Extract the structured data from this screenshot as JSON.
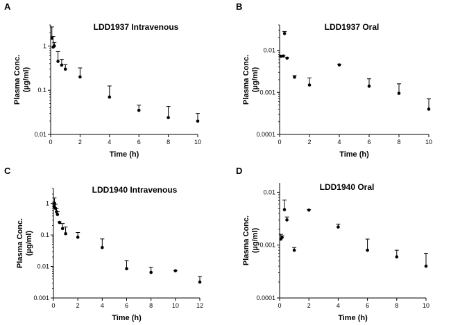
{
  "chart_data": [
    {
      "panel": "A",
      "type": "scatter",
      "title": "LDD1937 Intravenous",
      "xlabel": "Time (h)",
      "ylabel": [
        "Plasma Conc.",
        "(µg/ml)"
      ],
      "yscale": "log",
      "xlim": [
        0,
        10
      ],
      "ylim": [
        0.01,
        3
      ],
      "xticks": [
        0,
        2,
        4,
        6,
        8,
        10
      ],
      "xtick_labels": [
        "0",
        "2",
        "4",
        "6",
        "8",
        "10"
      ],
      "yticks": [
        0.01,
        0.1,
        1
      ],
      "ytick_labels": [
        "0.01",
        "0.1",
        "1"
      ],
      "points": [
        {
          "x": 0.083,
          "y": 1.5,
          "err": 2.7
        },
        {
          "x": 0.17,
          "y": 0.95,
          "err": 1.65
        },
        {
          "x": 0.25,
          "y": 1.0,
          "err": 1.2
        },
        {
          "x": 0.5,
          "y": 0.45,
          "err": 0.75
        },
        {
          "x": 0.75,
          "y": 0.37,
          "err": 0.5
        },
        {
          "x": 1,
          "y": 0.3,
          "err": 0.38
        },
        {
          "x": 2,
          "y": 0.2,
          "err": 0.32
        },
        {
          "x": 4,
          "y": 0.07,
          "err": 0.125
        },
        {
          "x": 6,
          "y": 0.035,
          "err": 0.046
        },
        {
          "x": 8,
          "y": 0.024,
          "err": 0.043
        },
        {
          "x": 10,
          "y": 0.02,
          "err": 0.03
        }
      ]
    },
    {
      "panel": "B",
      "type": "scatter",
      "title": "LDD1937 Oral",
      "xlabel": "Time (h)",
      "ylabel": [
        "Plasma Conc.",
        "(µg/ml)"
      ],
      "yscale": "log",
      "xlim": [
        0,
        10
      ],
      "ylim": [
        0.0001,
        0.04
      ],
      "xticks": [
        0,
        2,
        4,
        6,
        8,
        10
      ],
      "xtick_labels": [
        "0",
        "2",
        "4",
        "6",
        "8",
        "10"
      ],
      "yticks": [
        0.0001,
        0.001,
        0.01
      ],
      "ytick_labels": [
        "0.0001",
        "0.001",
        "0.01"
      ],
      "points": [
        {
          "x": 0.083,
          "y": 0.0072,
          "err": 0.0074
        },
        {
          "x": 0.25,
          "y": 0.0073,
          "err": 0.0075
        },
        {
          "x": 0.33,
          "y": 0.025,
          "err": 0.028
        },
        {
          "x": 0.5,
          "y": 0.0065,
          "err": 0.0068
        },
        {
          "x": 1,
          "y": 0.0023,
          "err": 0.0025
        },
        {
          "x": 2,
          "y": 0.0015,
          "err": 0.0022
        },
        {
          "x": 4,
          "y": 0.0045,
          "err": 0.0047
        },
        {
          "x": 6,
          "y": 0.0014,
          "err": 0.0021
        },
        {
          "x": 8,
          "y": 0.00095,
          "err": 0.0016
        },
        {
          "x": 10,
          "y": 0.0004,
          "err": 0.0007
        }
      ]
    },
    {
      "panel": "C",
      "type": "scatter",
      "title": "LDD1940 Intravenous",
      "xlabel": "Time (h)",
      "ylabel": [
        "Plasma Conc.",
        "(µg/ml)"
      ],
      "yscale": "log",
      "xlim": [
        0,
        12
      ],
      "ylim": [
        0.001,
        3
      ],
      "xticks": [
        0,
        2,
        4,
        6,
        8,
        10,
        12
      ],
      "xtick_labels": [
        "0",
        "2",
        "4",
        "6",
        "8",
        "10",
        "12"
      ],
      "yticks": [
        0.001,
        0.01,
        0.1,
        1
      ],
      "ytick_labels": [
        "0.001",
        "0.01",
        "0.1",
        "1"
      ],
      "points": [
        {
          "x": 0.05,
          "y": 0.8,
          "err": 1.1
        },
        {
          "x": 0.083,
          "y": 1.0,
          "err": 1.5
        },
        {
          "x": 0.17,
          "y": 0.7,
          "err": 0.95
        },
        {
          "x": 0.25,
          "y": 0.55,
          "err": 0.7
        },
        {
          "x": 0.33,
          "y": 0.45,
          "err": 0.55
        },
        {
          "x": 0.5,
          "y": 0.25,
          "err": 0.26
        },
        {
          "x": 0.75,
          "y": 0.16,
          "err": 0.23
        },
        {
          "x": 1,
          "y": 0.11,
          "err": 0.18
        },
        {
          "x": 2,
          "y": 0.085,
          "err": 0.12
        },
        {
          "x": 4,
          "y": 0.04,
          "err": 0.075
        },
        {
          "x": 6,
          "y": 0.0085,
          "err": 0.0155
        },
        {
          "x": 8,
          "y": 0.0065,
          "err": 0.0095
        },
        {
          "x": 10,
          "y": 0.0073,
          "err": 0.0075
        },
        {
          "x": 12,
          "y": 0.0032,
          "err": 0.0048
        }
      ]
    },
    {
      "panel": "D",
      "type": "scatter",
      "title": "LDD1940 Oral",
      "xlabel": "Time (h)",
      "ylabel": [
        "Plasma Conc.",
        "(µg/ml)"
      ],
      "yscale": "log",
      "xlim": [
        0,
        10
      ],
      "ylim": [
        0.0001,
        0.015
      ],
      "xticks": [
        0,
        2,
        4,
        6,
        8,
        10
      ],
      "xtick_labels": [
        "0",
        "2",
        "4",
        "6",
        "8",
        "10"
      ],
      "yticks": [
        0.0001,
        0.001,
        0.01
      ],
      "ytick_labels": [
        "0.0001",
        "0.001",
        "0.01"
      ],
      "points": [
        {
          "x": 0.083,
          "y": 0.0013,
          "err": 0.0016
        },
        {
          "x": 0.17,
          "y": 0.0014,
          "err": 0.0015
        },
        {
          "x": 0.33,
          "y": 0.0047,
          "err": 0.0071
        },
        {
          "x": 0.5,
          "y": 0.003,
          "err": 0.0034
        },
        {
          "x": 1,
          "y": 0.0008,
          "err": 0.0009
        },
        {
          "x": 2,
          "y": 0.0046,
          "err": 0.0047
        },
        {
          "x": 4,
          "y": 0.0022,
          "err": 0.0025
        },
        {
          "x": 6,
          "y": 0.0008,
          "err": 0.0013
        },
        {
          "x": 8,
          "y": 0.0006,
          "err": 0.0008
        },
        {
          "x": 10,
          "y": 0.0004,
          "err": 0.0007
        }
      ]
    }
  ]
}
